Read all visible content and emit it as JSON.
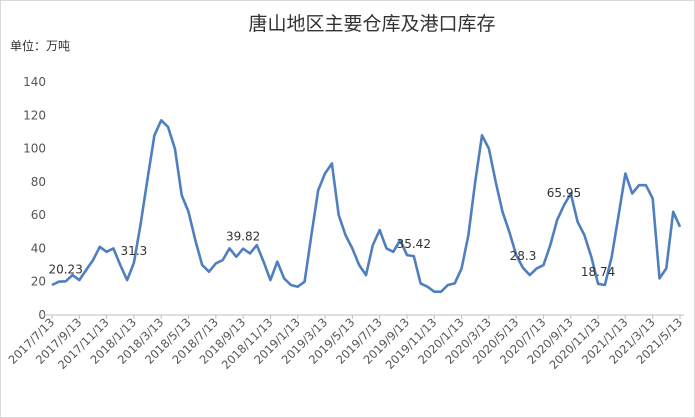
{
  "chart_data": {
    "type": "line",
    "title": "唐山地区主要仓库及港口库存",
    "y_unit_label": "单位：万吨",
    "categories": [
      "2017/7/13",
      null,
      null,
      null,
      "2017/9/13",
      null,
      null,
      null,
      "2017/11/13",
      null,
      null,
      null,
      "2018/1/13",
      null,
      null,
      null,
      "2018/3/13",
      null,
      null,
      null,
      "2018/5/13",
      null,
      null,
      null,
      "2018/7/13",
      null,
      null,
      null,
      "2018/9/13",
      null,
      null,
      null,
      "2018/11/13",
      null,
      null,
      null,
      "2019/1/13",
      null,
      null,
      null,
      "2019/3/13",
      null,
      null,
      null,
      "2019/5/13",
      null,
      null,
      null,
      "2019/7/13",
      null,
      null,
      null,
      "2019/9/13",
      null,
      null,
      null,
      "2019/11/13",
      null,
      null,
      null,
      "2020/1/13",
      null,
      null,
      null,
      "2020/3/13",
      null,
      null,
      null,
      "2020/5/13",
      null,
      null,
      null,
      "2020/7/13",
      null,
      null,
      null,
      "2020/9/13",
      null,
      null,
      null,
      "2020/11/13",
      null,
      null,
      null,
      "2021/1/13",
      null,
      null,
      null,
      "2021/3/13",
      null,
      null,
      null,
      "2021/5/13"
    ],
    "series": [
      {
        "name": "库存",
        "color": "#4f7fbf",
        "values": [
          18,
          20,
          20.23,
          24,
          21,
          27,
          33,
          41,
          38,
          40,
          30,
          21,
          31.3,
          55,
          82,
          108,
          117,
          113,
          100,
          72,
          62,
          45,
          30,
          26,
          31,
          33,
          40,
          35,
          39.82,
          37,
          42,
          32,
          21,
          32,
          22,
          18,
          17,
          20,
          48,
          75,
          85,
          91,
          60,
          48,
          40,
          30,
          24,
          42,
          51,
          40,
          38,
          45,
          36,
          35.42,
          19,
          17,
          14,
          14,
          18,
          19,
          28,
          48,
          80,
          108,
          100,
          80,
          62,
          50,
          36,
          28.3,
          24,
          28,
          30,
          42,
          57,
          65.95,
          73,
          56,
          48,
          35,
          18.74,
          18,
          35,
          60,
          85,
          73,
          78,
          78,
          70,
          22,
          28,
          62,
          53
        ]
      }
    ],
    "labeled_points": [
      2,
      12,
      28,
      53,
      69,
      75,
      80
    ],
    "ylim": [
      0,
      140
    ],
    "yticks": [
      0,
      20,
      40,
      60,
      80,
      100,
      120,
      140
    ],
    "grid": false
  }
}
